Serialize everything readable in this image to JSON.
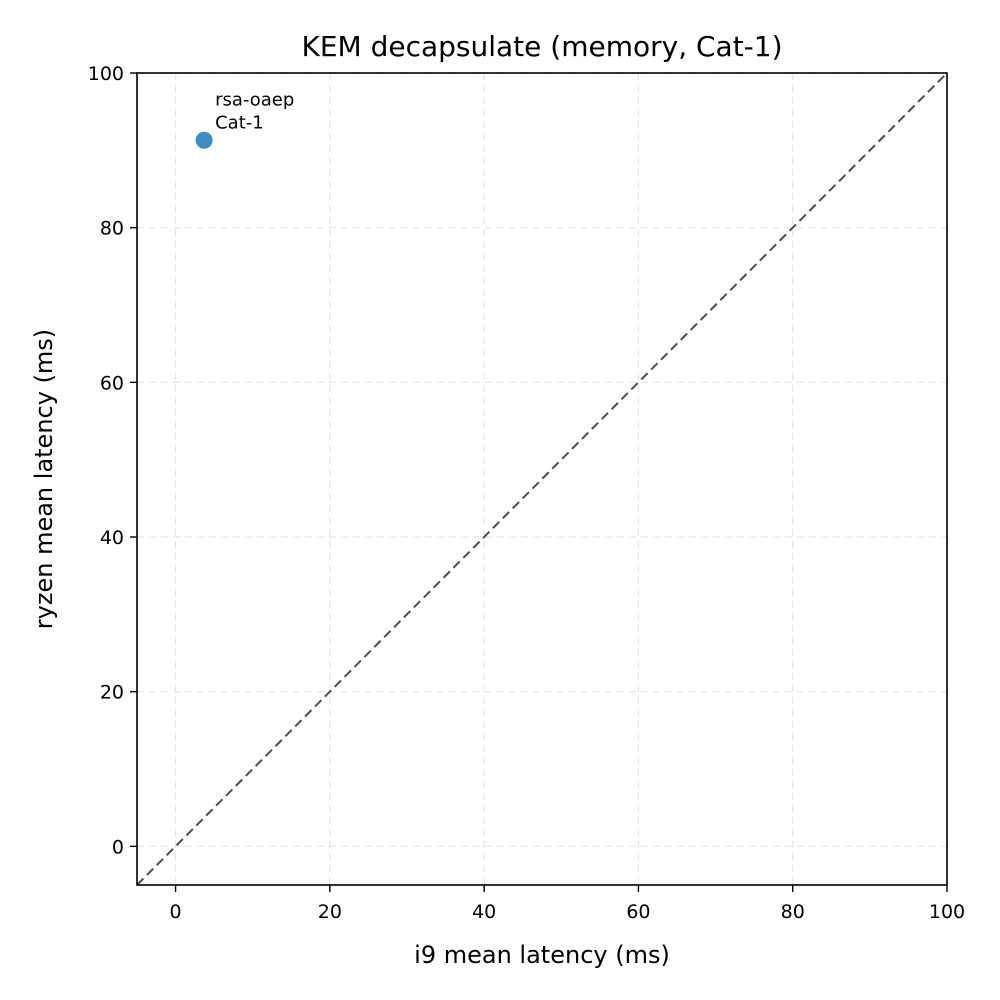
{
  "chart_data": {
    "type": "scatter",
    "title": "KEM decapsulate (memory, Cat-1)",
    "xlabel": "i9 mean latency (ms)",
    "ylabel": "ryzen mean latency (ms)",
    "xlim": [
      -5,
      100
    ],
    "ylim": [
      -5,
      100
    ],
    "xticks": [
      0,
      20,
      40,
      60,
      80,
      100
    ],
    "yticks": [
      0,
      20,
      40,
      60,
      80,
      100
    ],
    "grid": true,
    "reference_line": "y = x",
    "point_color": "#2f7fbd",
    "points": [
      {
        "x": 3.7,
        "y": 91.3,
        "label_line1": "rsa-oaep",
        "label_line2": "Cat-1"
      }
    ]
  }
}
